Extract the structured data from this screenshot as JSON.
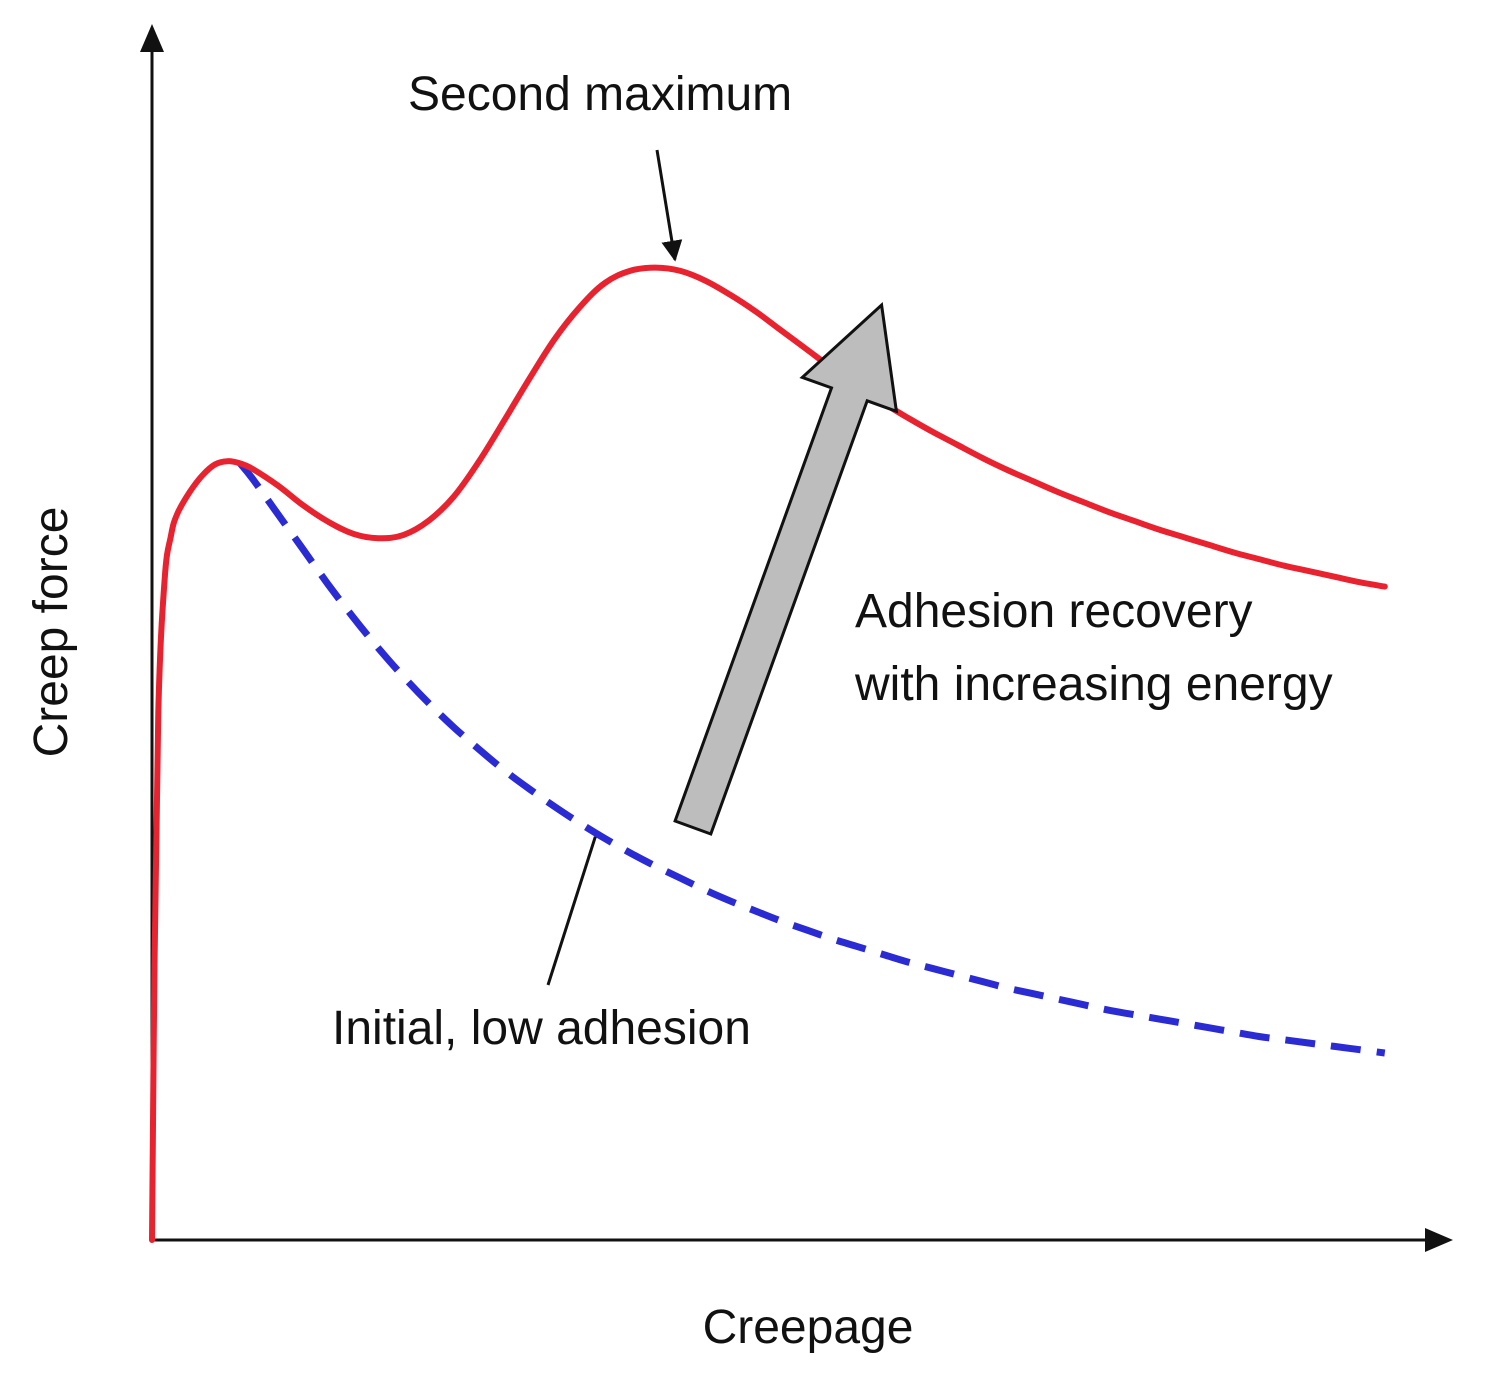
{
  "chart_data": {
    "type": "line",
    "title": "",
    "xlabel": "Creepage",
    "ylabel": "Creep force",
    "xlim": [
      0,
      100
    ],
    "ylim": [
      0,
      100
    ],
    "ticks": "none",
    "grid": false,
    "series": [
      {
        "name": "Adhesion recovery",
        "style": "solid",
        "color": "#e8222e",
        "x": [
          0,
          0.2,
          0.5,
          1,
          1.5,
          2,
          3,
          4,
          5,
          6,
          7,
          8,
          10,
          12,
          14,
          16,
          18,
          20,
          22,
          24,
          26,
          28,
          30,
          32,
          34,
          36,
          38,
          40,
          42,
          44,
          46,
          48,
          50,
          52,
          54,
          56,
          58,
          60,
          62,
          64,
          66,
          68,
          70,
          72,
          74,
          76,
          78,
          80,
          82,
          84,
          86,
          88,
          90,
          92,
          94,
          96,
          98
        ],
        "y": [
          0,
          25,
          48,
          60,
          64,
          66,
          68,
          69.5,
          70.5,
          70.8,
          70.6,
          70.1,
          68.6,
          66.8,
          65.3,
          64.2,
          63.8,
          64.1,
          65.4,
          67.6,
          70.8,
          74.5,
          78.3,
          81.9,
          84.8,
          87.0,
          88.1,
          88.4,
          88.1,
          87.2,
          85.9,
          84.4,
          82.7,
          81.0,
          79.3,
          77.7,
          76.2,
          74.8,
          73.5,
          72.3,
          71.1,
          70.0,
          69.0,
          68.0,
          67.1,
          66.2,
          65.4,
          64.6,
          63.9,
          63.2,
          62.5,
          61.9,
          61.3,
          60.8,
          60.3,
          59.8,
          59.4
        ]
      },
      {
        "name": "Initial, low adhesion",
        "style": "dashed",
        "color": "#2b2bd4",
        "x": [
          7,
          8,
          10,
          12,
          14,
          16,
          18,
          20,
          22,
          24,
          26,
          28,
          30,
          32,
          34,
          36,
          38,
          40,
          42,
          44,
          46,
          48,
          50,
          52,
          54,
          56,
          58,
          60,
          62,
          64,
          66,
          68,
          70,
          72,
          74,
          76,
          78,
          80,
          82,
          84,
          86,
          88,
          90,
          92,
          94,
          96,
          98
        ],
        "y": [
          70.6,
          69.2,
          66.0,
          62.8,
          59.6,
          56.6,
          53.8,
          51.2,
          48.8,
          46.6,
          44.6,
          42.7,
          41.0,
          39.4,
          37.9,
          36.5,
          35.2,
          34.0,
          32.9,
          31.8,
          30.8,
          29.9,
          29.0,
          28.2,
          27.4,
          26.7,
          26.0,
          25.3,
          24.7,
          24.1,
          23.5,
          22.9,
          22.4,
          21.9,
          21.4,
          20.9,
          20.5,
          20.1,
          19.7,
          19.3,
          18.9,
          18.5,
          18.2,
          17.9,
          17.6,
          17.3,
          17.0
        ]
      }
    ],
    "annotations": [
      {
        "text": "Second maximum",
        "points_to": [
          43,
          88.4
        ]
      },
      {
        "text": "Adhesion recovery",
        "line2": "with increasing energy",
        "arrow": "gray block arrow from dashed curve up to solid curve",
        "arrow_from": [
          43,
          37.5
        ],
        "arrow_to": [
          58,
          85
        ]
      },
      {
        "text": "Initial, low adhesion",
        "points_to": [
          35,
          37.2
        ]
      }
    ],
    "colors": {
      "red": "#e8222e",
      "blue": "#2b2bd4",
      "gray_arrow": "#bdbdbd"
    }
  }
}
